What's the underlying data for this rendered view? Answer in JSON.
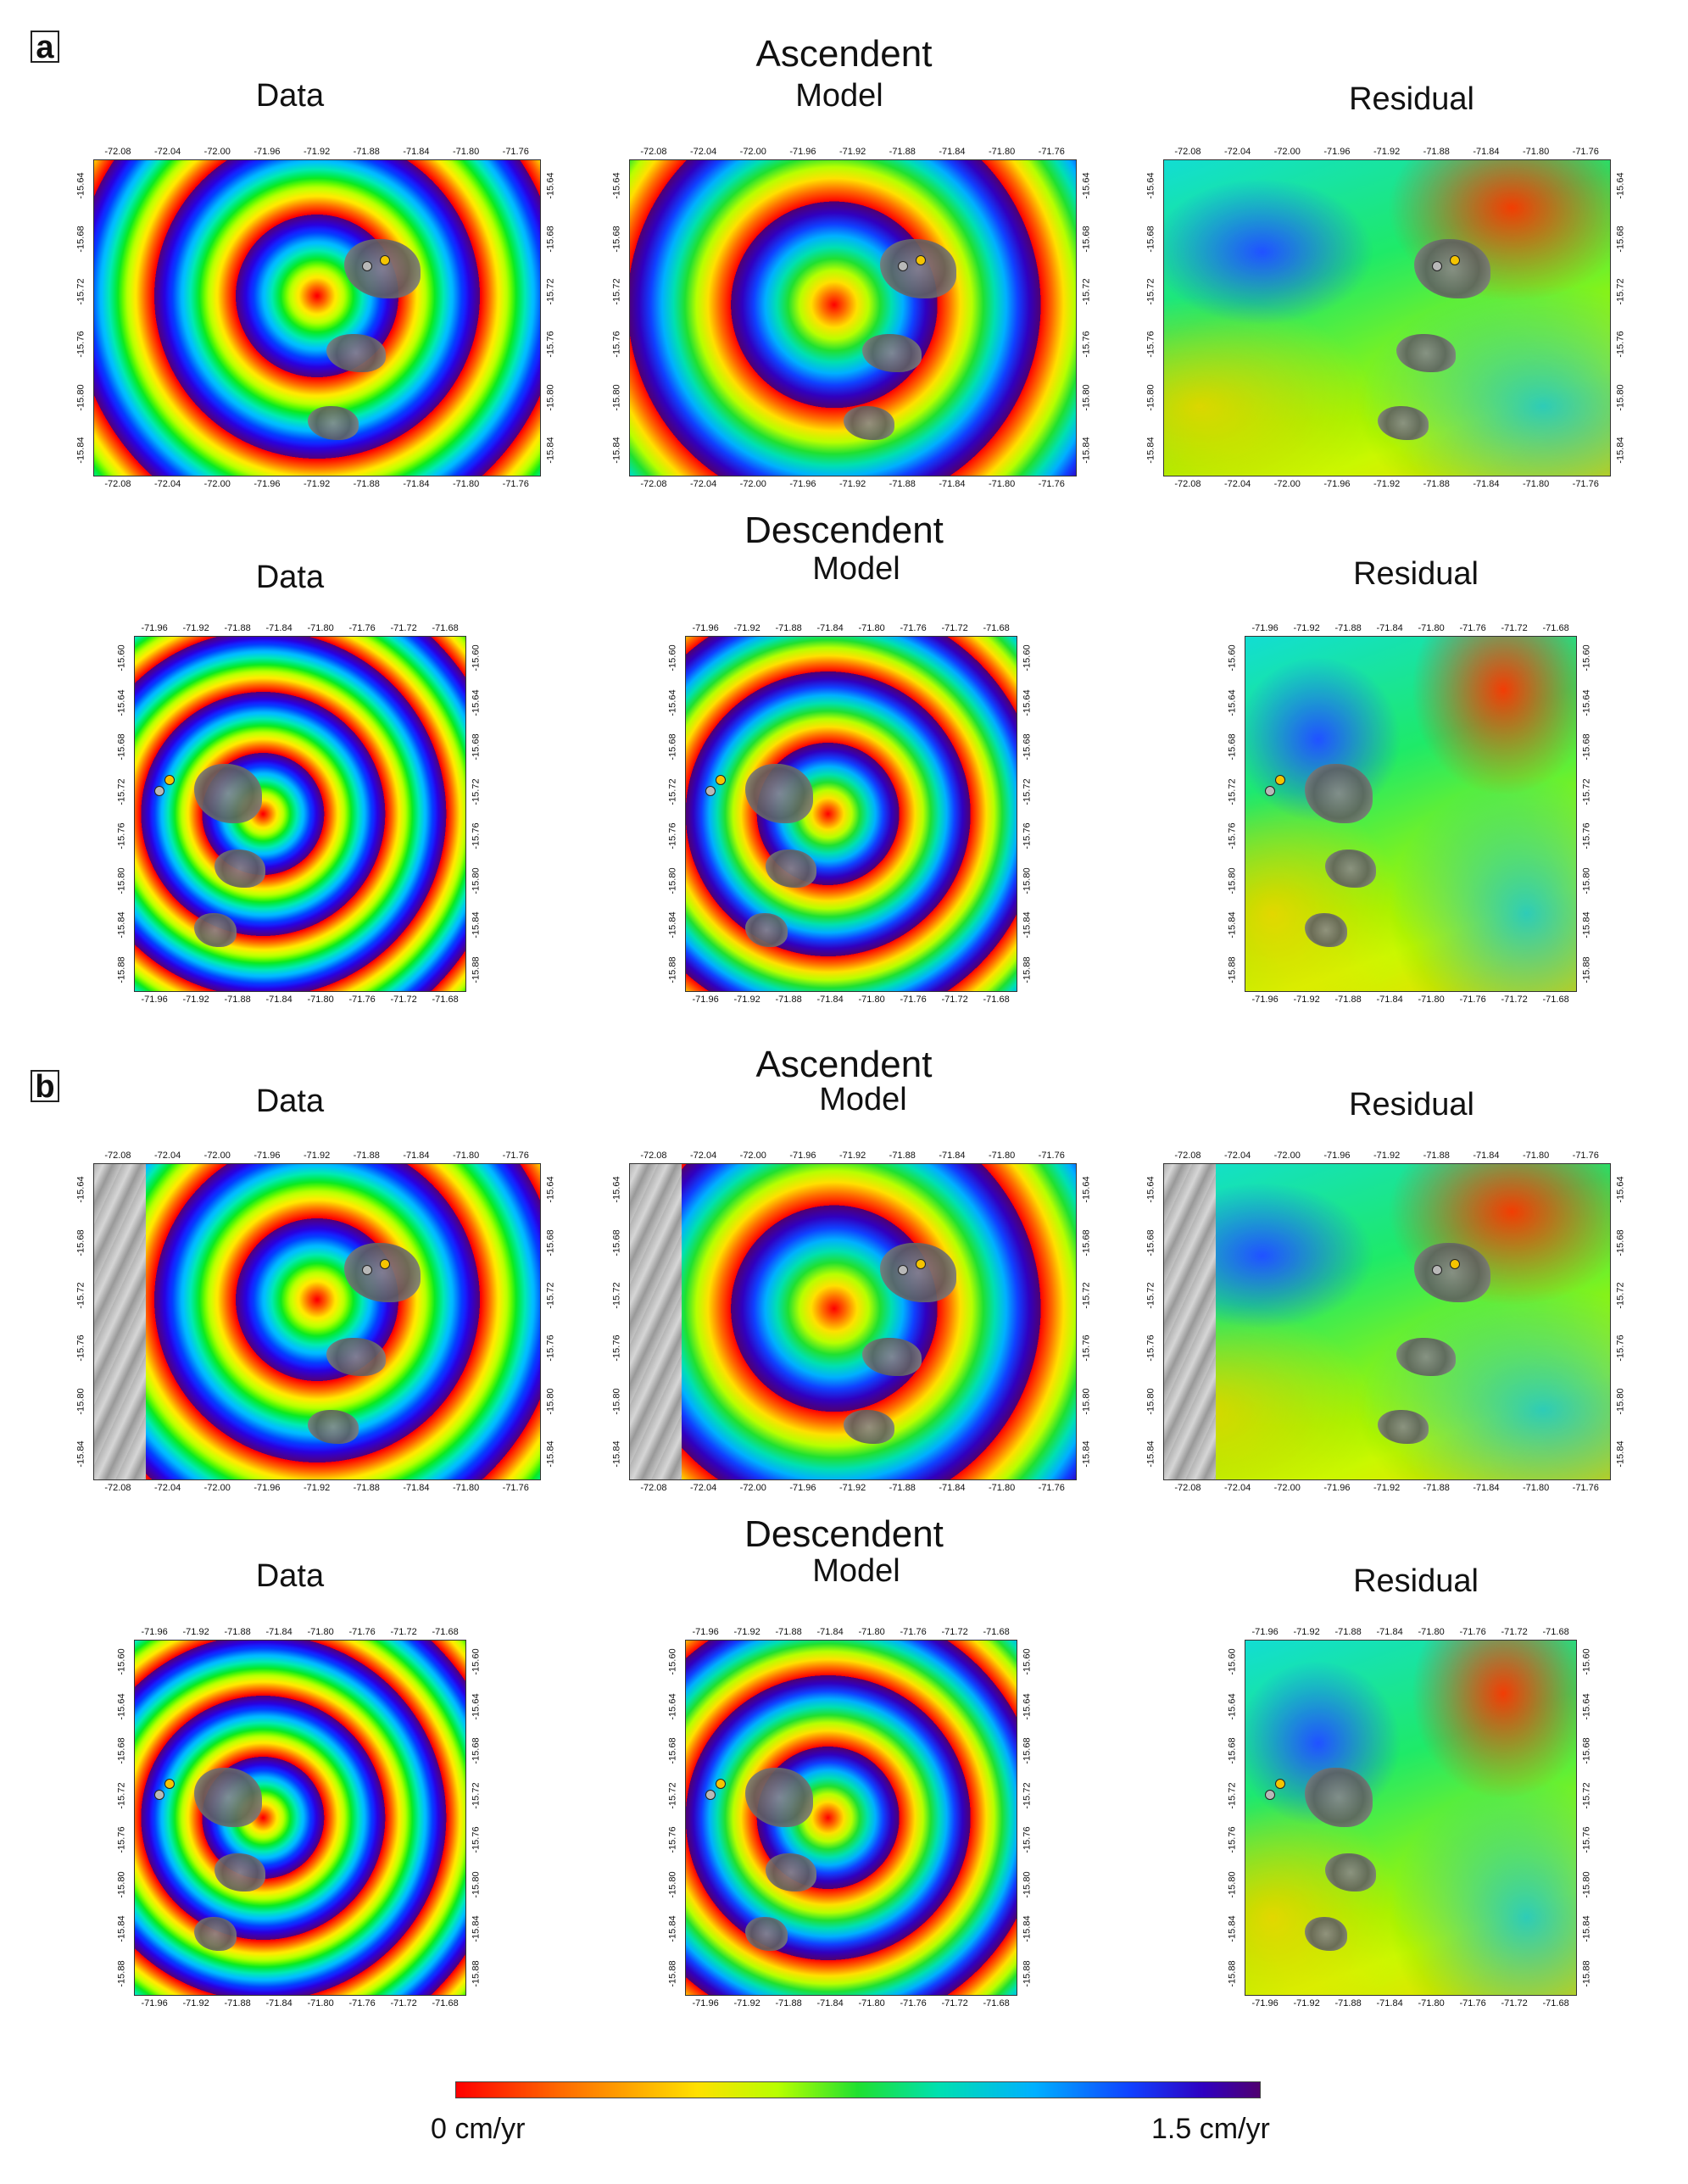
{
  "figure": {
    "parts": [
      {
        "label": "a",
        "rows": [
          {
            "title": "Ascendent",
            "panels": [
              {
                "title": "Data",
                "kind": "wrapped",
                "rings": 3.3,
                "noise": 0.35,
                "hill": false
              },
              {
                "title": "Model",
                "kind": "model",
                "rings": 2.6,
                "noise": 0.0,
                "hill": false
              },
              {
                "title": "Residual",
                "kind": "residual",
                "rings": 0,
                "noise": 0.5,
                "hill": false
              }
            ],
            "lon_ticks": [
              "-72.08",
              "-72.04",
              "-72.00",
              "-71.96",
              "-71.92",
              "-71.88",
              "-71.84",
              "-71.80",
              "-71.76"
            ],
            "lat_ticks": [
              "-15.64",
              "-15.68",
              "-15.72",
              "-15.76",
              "-15.80",
              "-15.84"
            ]
          },
          {
            "title": "Descendent",
            "panels": [
              {
                "title": "Data",
                "kind": "wrapped",
                "rings": 3.5,
                "noise": 0.35,
                "hill": false
              },
              {
                "title": "Model",
                "kind": "model",
                "rings": 3.0,
                "noise": 0.0,
                "hill": false
              },
              {
                "title": "Residual",
                "kind": "residual",
                "rings": 0,
                "noise": 0.5,
                "hill": false
              }
            ],
            "lon_ticks": [
              "-71.96",
              "-71.92",
              "-71.88",
              "-71.84",
              "-71.80",
              "-71.76",
              "-71.72",
              "-71.68"
            ],
            "lat_ticks": [
              "-15.60",
              "-15.64",
              "-15.68",
              "-15.72",
              "-15.76",
              "-15.80",
              "-15.84",
              "-15.88"
            ]
          }
        ]
      },
      {
        "label": "b",
        "rows": [
          {
            "title": "Ascendent",
            "panels": [
              {
                "title": "Data",
                "kind": "wrapped",
                "rings": 3.3,
                "noise": 0.35,
                "hill": true
              },
              {
                "title": "Model",
                "kind": "model",
                "rings": 2.6,
                "noise": 0.0,
                "hill": true
              },
              {
                "title": "Residual",
                "kind": "residual",
                "rings": 0,
                "noise": 0.5,
                "hill": true
              }
            ],
            "lon_ticks": [
              "-72.08",
              "-72.04",
              "-72.00",
              "-71.96",
              "-71.92",
              "-71.88",
              "-71.84",
              "-71.80",
              "-71.76"
            ],
            "lat_ticks": [
              "-15.64",
              "-15.68",
              "-15.72",
              "-15.76",
              "-15.80",
              "-15.84"
            ]
          },
          {
            "title": "Descendent",
            "panels": [
              {
                "title": "Data",
                "kind": "wrapped",
                "rings": 3.5,
                "noise": 0.35,
                "hill": false
              },
              {
                "title": "Model",
                "kind": "model",
                "rings": 3.0,
                "noise": 0.0,
                "hill": false
              },
              {
                "title": "Residual",
                "kind": "residual",
                "rings": 0,
                "noise": 0.5,
                "hill": false
              }
            ],
            "lon_ticks": [
              "-71.96",
              "-71.92",
              "-71.88",
              "-71.84",
              "-71.80",
              "-71.76",
              "-71.72",
              "-71.68"
            ],
            "lat_ticks": [
              "-15.60",
              "-15.64",
              "-15.68",
              "-15.72",
              "-15.76",
              "-15.80",
              "-15.84",
              "-15.88"
            ]
          }
        ]
      }
    ],
    "colorbar": {
      "min_label": "0 cm/yr",
      "max_label": "1.5 cm/yr",
      "colors": [
        "#ff0000",
        "#ff6a00",
        "#ffe000",
        "#b8ff00",
        "#20e030",
        "#00e0b0",
        "#00b0ff",
        "#1040ff",
        "#3000c0",
        "#500070"
      ]
    },
    "markers": {
      "yellow": "#f5c400",
      "grey": "#b8b8b8"
    }
  }
}
